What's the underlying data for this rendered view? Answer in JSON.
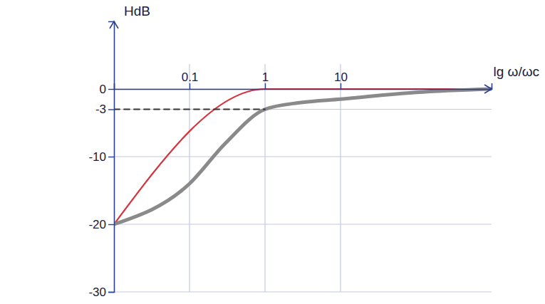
{
  "chart_data": {
    "type": "line",
    "log": "x",
    "grid": true,
    "x_label": "lg ω/ωc",
    "y_label": "HdB",
    "xlim": [
      0.01,
      1000
    ],
    "ylim": [
      -30,
      10
    ],
    "xticks": [
      0.1,
      1,
      10
    ],
    "yticks": [
      0,
      -3,
      -10,
      -20,
      -30
    ],
    "series": [
      {
        "color": "#d8323c",
        "line_style": "solid",
        "x": [
          0.01,
          1,
          1000
        ],
        "values": [
          -20,
          0,
          0
        ]
      },
      {
        "color": "#8a8a8a",
        "line_style": "solid",
        "x": [
          0.01,
          0.1,
          0.3,
          1,
          3,
          10,
          100,
          1000
        ],
        "values": [
          -20,
          -14,
          -8,
          -3,
          -2,
          -1.5,
          -0.5,
          0
        ]
      },
      {
        "color": "#333333",
        "line_style": "dashed",
        "x": [
          0.01,
          1
        ],
        "values": [
          -3,
          -3
        ]
      }
    ]
  }
}
